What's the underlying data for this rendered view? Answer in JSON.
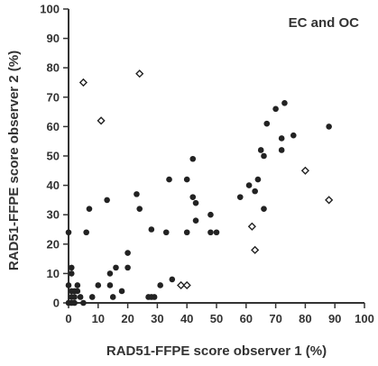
{
  "chart_data": {
    "type": "scatter",
    "title": "",
    "annotation": "EC and OC",
    "xlabel": "RAD51-FFPE score observer 1 (%)",
    "ylabel": "RAD51-FFPE score observer 2  (%)",
    "xlim": [
      0,
      100
    ],
    "ylim": [
      0,
      100
    ],
    "xticks": [
      "0",
      "10",
      "20",
      "30",
      "40",
      "50",
      "60",
      "70",
      "80",
      "90",
      "100"
    ],
    "yticks": [
      "0",
      "10",
      "20",
      "30",
      "40",
      "50",
      "60",
      "70",
      "80",
      "90",
      "100"
    ],
    "grid": false,
    "series": [
      {
        "marker": "filled-circle",
        "color": "#222222",
        "points": [
          [
            0,
            24
          ],
          [
            0,
            6
          ],
          [
            0,
            0
          ],
          [
            1,
            0
          ],
          [
            1,
            2
          ],
          [
            1,
            4
          ],
          [
            1,
            10
          ],
          [
            1,
            12
          ],
          [
            2,
            0
          ],
          [
            2,
            2
          ],
          [
            2,
            4
          ],
          [
            3,
            4
          ],
          [
            3,
            6
          ],
          [
            4,
            2
          ],
          [
            5,
            0
          ],
          [
            6,
            24
          ],
          [
            7,
            32
          ],
          [
            8,
            2
          ],
          [
            10,
            6
          ],
          [
            13,
            35
          ],
          [
            14,
            6
          ],
          [
            14,
            10
          ],
          [
            15,
            2
          ],
          [
            16,
            12
          ],
          [
            18,
            4
          ],
          [
            20,
            12
          ],
          [
            20,
            17
          ],
          [
            23,
            37
          ],
          [
            24,
            32
          ],
          [
            27,
            2
          ],
          [
            28,
            2
          ],
          [
            28,
            25
          ],
          [
            29,
            2
          ],
          [
            31,
            6
          ],
          [
            33,
            24
          ],
          [
            34,
            42
          ],
          [
            35,
            8
          ],
          [
            40,
            42
          ],
          [
            40,
            24
          ],
          [
            42,
            49
          ],
          [
            42,
            36
          ],
          [
            43,
            34
          ],
          [
            43,
            28
          ],
          [
            48,
            30
          ],
          [
            48,
            24
          ],
          [
            50,
            24
          ],
          [
            58,
            36
          ],
          [
            61,
            40
          ],
          [
            63,
            38
          ],
          [
            64,
            42
          ],
          [
            65,
            52
          ],
          [
            66,
            32
          ],
          [
            66,
            50
          ],
          [
            67,
            61
          ],
          [
            70,
            66
          ],
          [
            72,
            52
          ],
          [
            72,
            56
          ],
          [
            73,
            68
          ],
          [
            76,
            57
          ],
          [
            88,
            60
          ]
        ]
      },
      {
        "marker": "open-diamond",
        "color": "#222222",
        "points": [
          [
            5,
            75
          ],
          [
            11,
            62
          ],
          [
            24,
            78
          ],
          [
            38,
            6
          ],
          [
            40,
            6
          ],
          [
            62,
            26
          ],
          [
            63,
            18
          ],
          [
            80,
            45
          ],
          [
            88,
            35
          ]
        ]
      }
    ]
  }
}
